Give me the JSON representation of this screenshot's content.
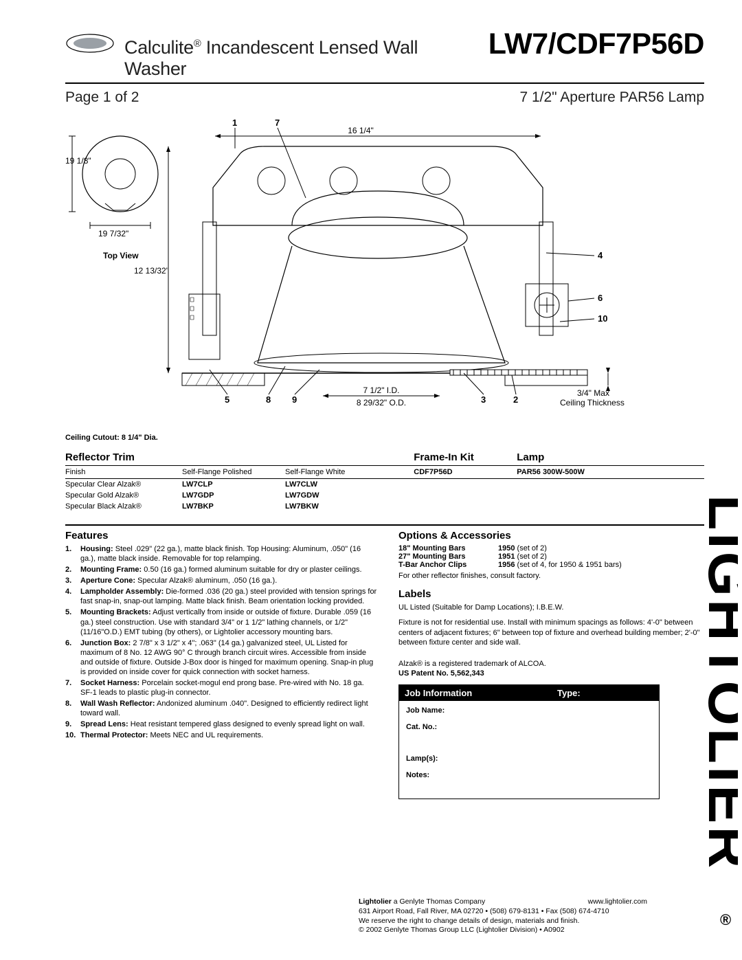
{
  "header": {
    "product_line": "Calculite",
    "reg_mark": "®",
    "product_desc": "Incandescent Lensed Wall Washer",
    "model": "LW7/CDF7P56D",
    "page_label": "Page 1 of 2",
    "aperture_label": "7 1/2\" Aperture PAR56 Lamp"
  },
  "diagram": {
    "top_view_label": "Top View",
    "dims": {
      "top_dia": "19 1/8\"",
      "top_chord": "19 7/32\"",
      "height": "12 13/32\"",
      "width": "16 1/4\"",
      "id": "7 1/2\" I.D.",
      "od": "8 29/32\" O.D.",
      "ceiling": "3/4\" Max",
      "ceiling2": "Ceiling Thickness"
    },
    "callouts": [
      "1",
      "2",
      "3",
      "4",
      "5",
      "6",
      "7",
      "8",
      "9",
      "10"
    ],
    "cutout_note": "Ceiling Cutout: 8 1/4\" Dia."
  },
  "reflector_trim": {
    "title": "Reflector Trim",
    "subhead": {
      "c1": "Finish",
      "c2": "Self-Flange Polished",
      "c3": "Self-Flange White"
    },
    "rows": [
      {
        "finish": "Specular Clear Alzak®",
        "p": "LW7CLP",
        "w": "LW7CLW"
      },
      {
        "finish": "Specular Gold Alzak®",
        "p": "LW7GDP",
        "w": "LW7GDW"
      },
      {
        "finish": "Specular Black Alzak®",
        "p": "LW7BKP",
        "w": "LW7BKW"
      }
    ]
  },
  "frame_in": {
    "title": "Frame-In Kit",
    "value": "CDF7P56D"
  },
  "lamp": {
    "title": "Lamp",
    "value": "PAR56 300W-500W"
  },
  "features": {
    "title": "Features",
    "items": [
      {
        "n": "1.",
        "lead": "Housing:",
        "body": " Steel .029\" (22 ga.), matte black finish. Top Housing: Aluminum, .050\" (16 ga.), matte black inside. Removable for top relamping."
      },
      {
        "n": "2.",
        "lead": "Mounting Frame:",
        "body": " 0.50 (16 ga.) formed aluminum suitable for dry or plaster ceilings."
      },
      {
        "n": "3.",
        "lead": "Aperture Cone:",
        "body": " Specular Alzak® aluminum, .050 (16 ga.)."
      },
      {
        "n": "4.",
        "lead": "Lampholder Assembly:",
        "body": " Die-formed .036 (20 ga.) steel provided with tension springs for fast snap-in, snap-out lamping. Matte black finish. Beam orientation locking provided."
      },
      {
        "n": "5.",
        "lead": "Mounting Brackets:",
        "body": " Adjust vertically from inside or outside of fixture. Durable .059 (16 ga.) steel construction. Use with standard 3/4\" or 1 1/2\" lathing channels, or 1/2\" (11/16\"O.D.) EMT tubing (by others), or Lightolier accessory mounting bars."
      },
      {
        "n": "6.",
        "lead": "Junction Box:",
        "body": " 2 7/8\" x 3 1/2\" x 4\"; .063\" (14 ga.) galvanized steel, UL Listed for maximum of 8 No. 12 AWG 90° C through branch circuit wires. Accessible from inside and outside of fixture. Outside J-Box door is hinged for maximum opening. Snap-in plug is provided on inside cover for quick connection with socket harness."
      },
      {
        "n": "7.",
        "lead": "Socket Harness:",
        "body": " Porcelain socket-mogul end prong base. Pre-wired with No. 18 ga. SF-1 leads to plastic plug-in connector."
      },
      {
        "n": "8.",
        "lead": "Wall Wash Reflector:",
        "body": " Andonized aluminum .040\". Designed to efficiently redirect light toward wall."
      },
      {
        "n": "9.",
        "lead": "Spread Lens:",
        "body": " Heat resistant tempered glass designed to evenly spread light on wall."
      },
      {
        "n": "10.",
        "lead": "Thermal Protector:",
        "body": " Meets NEC and UL requirements."
      }
    ]
  },
  "options": {
    "title": "Options & Accessories",
    "rows": [
      {
        "label": "18\" Mounting Bars",
        "code": "1950",
        "rest": " (set of 2)"
      },
      {
        "label": "27\" Mounting Bars",
        "code": "1951",
        "rest": " (set of 2)"
      },
      {
        "label": "T-Bar Anchor Clips",
        "code": "1956",
        "rest": " (set of 4, for 1950 & 1951 bars)"
      }
    ],
    "note": "For other reflector finishes, consult factory."
  },
  "labels_section": {
    "title": "Labels",
    "line1": "UL Listed (Suitable for Damp Locations); I.B.E.W.",
    "line2": "Fixture is not for residential use. Install with minimum spacings as follows: 4'-0\" between centers of adjacent fixtures; 6\" between top of fixture and overhead building member; 2'-0\" between fixture center and side wall."
  },
  "legal": {
    "alzak": "Alzak® is a registered trademark of ALCOA.",
    "patent": "US Patent No. 5,562,343"
  },
  "job_box": {
    "head_l": "Job Information",
    "head_r": "Type:",
    "fields": {
      "job_name": "Job Name:",
      "cat_no": "Cat. No.:",
      "lamps": "Lamp(s):",
      "notes": "Notes:"
    }
  },
  "footer": {
    "company_bold": "Lightolier",
    "company_rest": " a Genlyte Thomas Company",
    "url": "www.lightolier.com",
    "addr": "631 Airport Road, Fall River, MA 02720 • (508) 679-8131 • Fax (508) 674-4710",
    "disclaimer": "We reserve the right to change details of design, materials and finish.",
    "copyright": "© 2002 Genlyte Thomas Group LLC (Lightolier Division) • A0902"
  },
  "brand": "LIGHTOLIER",
  "colors": {
    "text": "#000000",
    "bg": "#ffffff",
    "rule": "#000000",
    "jobbox_bg": "#000000",
    "jobbox_fg": "#ffffff"
  }
}
